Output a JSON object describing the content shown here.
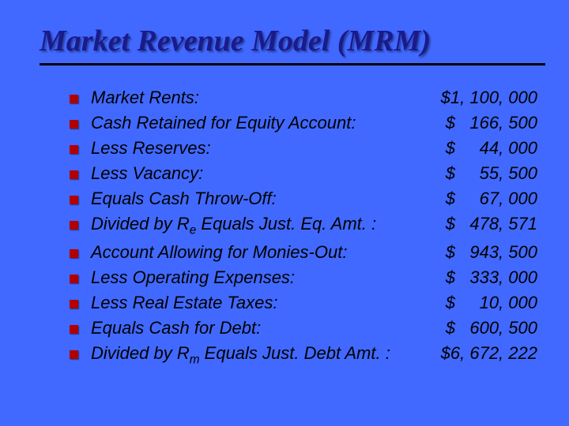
{
  "slide": {
    "title": "Market Revenue Model (MRM)",
    "background_color": "#4169ff",
    "title_color": "#1a1a8b",
    "rule_color": "#000000",
    "bullet_color": "#b00000",
    "text_color": "#000000",
    "title_font": "Times New Roman italic bold",
    "body_font": "Arial italic",
    "title_fontsize_pt": 28,
    "body_fontsize_pt": 16,
    "items": [
      {
        "label": "Market Rents:",
        "value": "$1, 100, 000"
      },
      {
        "label": "Cash Retained for Equity Account:",
        "value": "$   166, 500"
      },
      {
        "label": "Less Reserves:",
        "value": "$     44, 000"
      },
      {
        "label": "Less Vacancy:",
        "value": "$     55, 500"
      },
      {
        "label": "Equals Cash Throw-Off:",
        "value": "$     67, 000"
      },
      {
        "label_html": "Divided by R<sub>e</sub> Equals Just. Eq. Amt. :",
        "label": "Divided by Re Equals Just. Eq. Amt. :",
        "value": "$   478, 571"
      },
      {
        "label": "Account Allowing for Monies-Out:",
        "value": "$   943, 500"
      },
      {
        "label": "Less Operating Expenses:",
        "value": "$   333, 000"
      },
      {
        "label": "Less Real Estate Taxes:",
        "value": "$     10, 000"
      },
      {
        "label": "Equals Cash for Debt:",
        "value": "$   600, 500"
      },
      {
        "label_html": "Divided by R<sub>m</sub> Equals Just. Debt Amt. :",
        "label": "Divided by Rm Equals Just. Debt Amt. :",
        "value": "$6, 672, 222"
      }
    ]
  }
}
